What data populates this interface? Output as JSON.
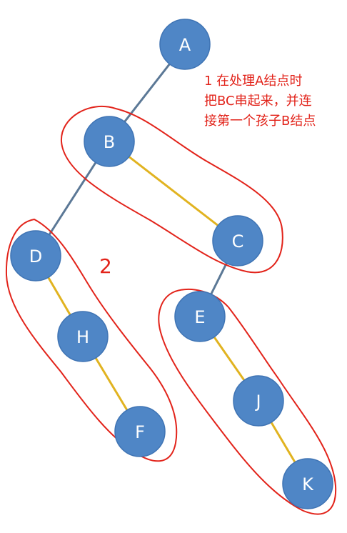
{
  "nodes": [
    {
      "id": "a",
      "label": "A"
    },
    {
      "id": "b",
      "label": "B"
    },
    {
      "id": "c",
      "label": "C"
    },
    {
      "id": "d",
      "label": "D"
    },
    {
      "id": "h",
      "label": "H"
    },
    {
      "id": "f",
      "label": "F"
    },
    {
      "id": "e",
      "label": "E"
    },
    {
      "id": "j",
      "label": "J"
    },
    {
      "id": "k",
      "label": "K"
    }
  ],
  "edges": [
    {
      "from": "A",
      "to": "B",
      "kind": "first-child"
    },
    {
      "from": "B",
      "to": "D",
      "kind": "first-child"
    },
    {
      "from": "C",
      "to": "E",
      "kind": "first-child"
    },
    {
      "from": "B",
      "to": "C",
      "kind": "sibling"
    },
    {
      "from": "D",
      "to": "H",
      "kind": "sibling"
    },
    {
      "from": "H",
      "to": "F",
      "kind": "sibling"
    },
    {
      "from": "E",
      "to": "J",
      "kind": "sibling"
    },
    {
      "from": "J",
      "to": "K",
      "kind": "sibling"
    }
  ],
  "annotation": {
    "line1": "1 在处理A结点时",
    "line2": "把BC串起来，并连",
    "line3": "接第一个孩子B结点"
  },
  "group_label": "2",
  "colors": {
    "node_fill": "#4f86c6",
    "child_edge": "#5b7896",
    "sibling_edge": "#e1b320",
    "annotation_red": "#e2231a"
  }
}
